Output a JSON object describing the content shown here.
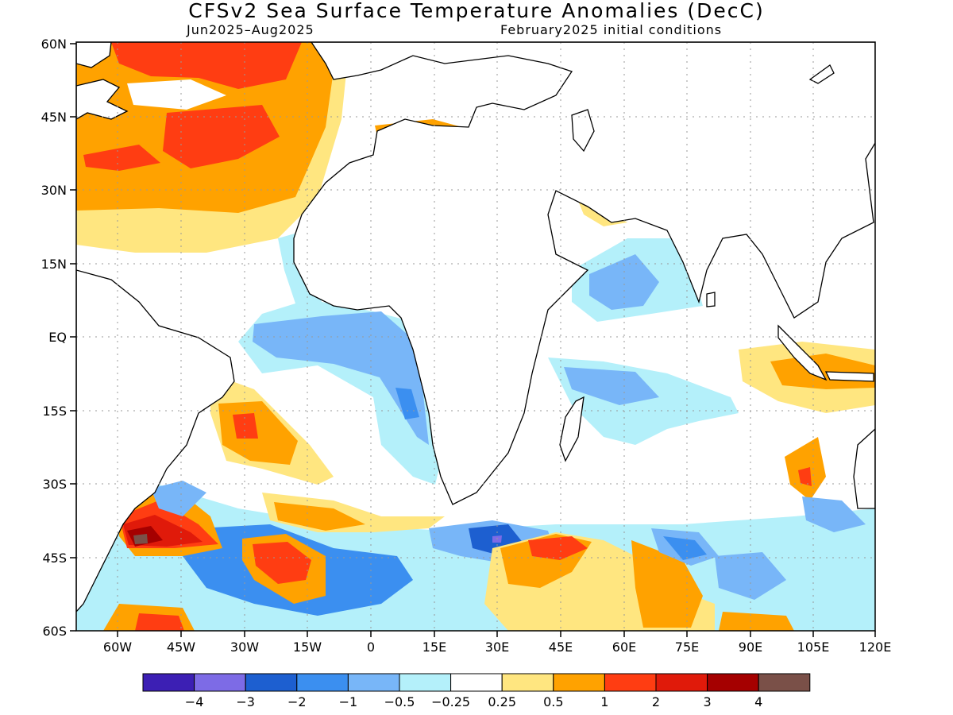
{
  "header": {
    "title": "CFSv2 Sea Surface Temperature Anomalies (DecC)",
    "period": "Jun2025–Aug2025",
    "init": "February2025 initial conditions"
  },
  "axes": {
    "lat_labels": [
      "60N",
      "45N",
      "30N",
      "15N",
      "EQ",
      "15S",
      "30S",
      "45S",
      "60S"
    ],
    "lon_labels": [
      "60W",
      "45W",
      "30W",
      "15W",
      "0",
      "15E",
      "30E",
      "45E",
      "60E",
      "75E",
      "90E",
      "105E",
      "120E"
    ]
  },
  "colorbar": {
    "colors": [
      "#3c1fb4",
      "#7d6be6",
      "#1d5fd0",
      "#3b8ff0",
      "#78b6f8",
      "#b4f0fa",
      "#ffffff",
      "#ffe680",
      "#ffa200",
      "#ff3d12",
      "#e01a0a",
      "#a50000",
      "#7a5048"
    ],
    "labels": [
      "−4",
      "−3",
      "−2",
      "−1",
      "−0.5",
      "−0.25",
      "0.25",
      "0.5",
      "1",
      "2",
      "3",
      "4"
    ]
  }
}
